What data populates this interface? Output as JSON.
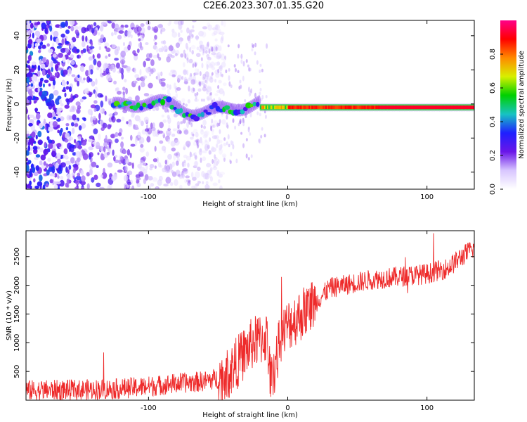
{
  "title": "C2E6.2023.307.01.35.G20",
  "colors": {
    "signal": "#ee2a2a",
    "speckle": "#6a16e8",
    "colormap": [
      "#ffffff",
      "#d8c6ff",
      "#6a16e8",
      "#1f1fff",
      "#17c3c3",
      "#00d000",
      "#d8f000",
      "#ff8a00",
      "#ff0000",
      "#ff0088"
    ]
  },
  "chart_data": [
    {
      "type": "heatmap",
      "title": "",
      "xlabel": "Height of straight line (km)",
      "ylabel": "Frequency (Hz)",
      "xlim": [
        -188,
        134
      ],
      "ylim": [
        -50,
        49
      ],
      "x_ticks": [
        -100,
        0,
        100
      ],
      "y_ticks": [
        -40,
        -20,
        0,
        20,
        40
      ],
      "colorbar": {
        "label": "Normalized spectral amplitude",
        "range": [
          0.0,
          1.0
        ],
        "ticks": [
          0.0,
          0.2,
          0.4,
          0.6,
          0.8
        ]
      },
      "features": {
        "noise_region_x": [
          -188,
          -65
        ],
        "signal_onset_x": -125,
        "ridge_frequency_hz": -2,
        "ridge_strong_x": [
          -20,
          134
        ],
        "ridge_peak_x": [
          65,
          134
        ]
      }
    },
    {
      "type": "line",
      "title": "",
      "xlabel": "Height of straight line (km)",
      "ylabel": "SNR (10 * v/v)",
      "xlim": [
        -188,
        134
      ],
      "ylim": [
        0,
        2950
      ],
      "x_ticks": [
        -100,
        0,
        100
      ],
      "y_ticks": [
        500,
        1000,
        1500,
        2000,
        2500
      ],
      "trend": {
        "x": [
          -188,
          -150,
          -120,
          -100,
          -80,
          -60,
          -45,
          -35,
          -25,
          -15,
          -12,
          -5,
          0,
          10,
          20,
          30,
          40,
          60,
          80,
          100,
          115,
          125,
          134
        ],
        "y": [
          170,
          180,
          200,
          240,
          290,
          330,
          400,
          700,
          1000,
          1100,
          280,
          1100,
          1300,
          1500,
          1700,
          1950,
          2000,
          2100,
          2150,
          2200,
          2300,
          2500,
          2650
        ]
      },
      "noise_amplitude": 180
    }
  ]
}
